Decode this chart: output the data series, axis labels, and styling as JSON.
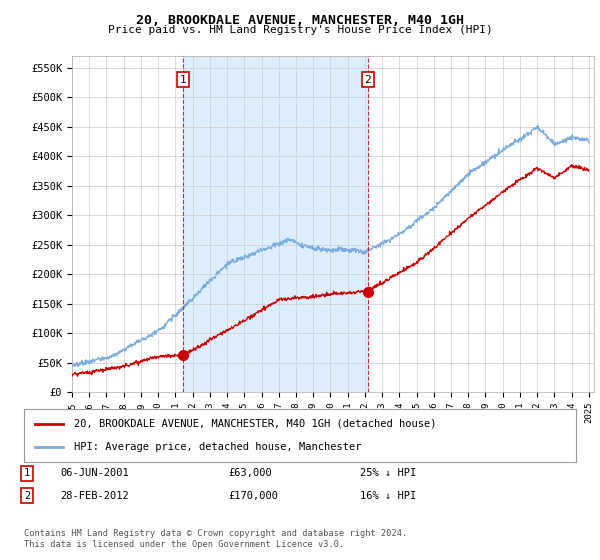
{
  "title": "20, BROOKDALE AVENUE, MANCHESTER, M40 1GH",
  "subtitle": "Price paid vs. HM Land Registry's House Price Index (HPI)",
  "ylim": [
    0,
    570000
  ],
  "yticks": [
    0,
    50000,
    100000,
    150000,
    200000,
    250000,
    300000,
    350000,
    400000,
    450000,
    500000,
    550000
  ],
  "ytick_labels": [
    "£0",
    "£50K",
    "£100K",
    "£150K",
    "£200K",
    "£250K",
    "£300K",
    "£350K",
    "£400K",
    "£450K",
    "£500K",
    "£550K"
  ],
  "xlim_start": 1995.0,
  "xlim_end": 2025.3,
  "sale1_x": 2001.44,
  "sale1_y": 63000,
  "sale1_label": "1",
  "sale1_date": "06-JUN-2001",
  "sale1_price": "£63,000",
  "sale1_hpi": "25% ↓ HPI",
  "sale2_x": 2012.17,
  "sale2_y": 170000,
  "sale2_label": "2",
  "sale2_date": "28-FEB-2012",
  "sale2_price": "£170,000",
  "sale2_hpi": "16% ↓ HPI",
  "line_color_property": "#cc0000",
  "line_color_hpi": "#7aaddb",
  "shade_color": "#ddeeff",
  "vline_color": "#cc0000",
  "background_color": "#ffffff",
  "grid_color": "#cccccc",
  "legend_label_property": "20, BROOKDALE AVENUE, MANCHESTER, M40 1GH (detached house)",
  "legend_label_hpi": "HPI: Average price, detached house, Manchester",
  "footnote": "Contains HM Land Registry data © Crown copyright and database right 2024.\nThis data is licensed under the Open Government Licence v3.0."
}
